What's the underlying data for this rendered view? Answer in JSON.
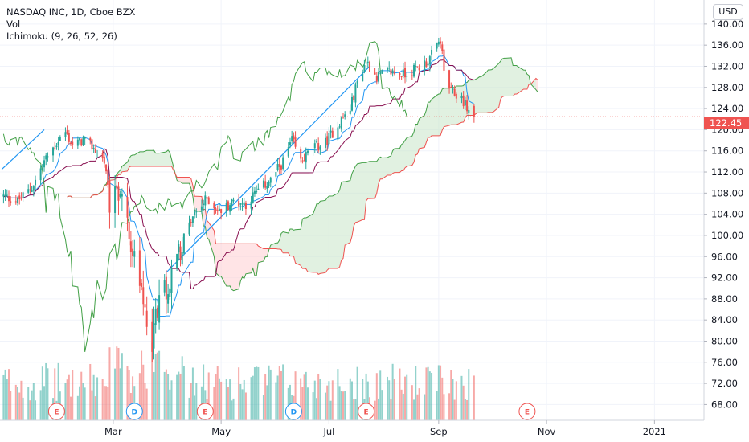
{
  "header": {
    "symbol_line": "NASDAQ INC, 1D, Cboe BZX",
    "vol_label": "Vol",
    "ichimoku_label": "Ichimoku (9, 26, 52, 26)"
  },
  "currency_button": "USD",
  "last_price_tag": "122.45",
  "colors": {
    "up": "#26a69a",
    "down": "#ef5350",
    "conversion": "#2196f3",
    "base": "#880e4f",
    "lagging": "#43a047",
    "lead_a": "#43a047",
    "lead_b": "#ef5350",
    "cloud_bull": "#c8e6c9",
    "cloud_bear": "#ffcdd2",
    "trendline": "#2196f3"
  },
  "chart_data": {
    "type": "candlestick",
    "y_ticks": [
      "140.00",
      "136.00",
      "132.00",
      "128.00",
      "124.00",
      "120.00",
      "116.00",
      "112.00",
      "108.00",
      "104.00",
      "100.00",
      "96.00",
      "92.00",
      "88.00",
      "84.00",
      "80.00",
      "76.00",
      "72.00",
      "68.00"
    ],
    "x_ticks": [
      {
        "label": "Mar",
        "date": "2020-03-01"
      },
      {
        "label": "May",
        "date": "2020-05-01"
      },
      {
        "label": "Jul",
        "date": "2020-07-01"
      },
      {
        "label": "Sep",
        "date": "2020-09-01"
      },
      {
        "label": "Nov",
        "date": "2020-11-01"
      },
      {
        "label": "2021",
        "date": "2021-01-01"
      }
    ],
    "ylim": [
      67,
      141.5
    ],
    "xlim": [
      "2019-12-28",
      "2021-01-29"
    ],
    "last_price": 122.45,
    "trend_lines": [
      {
        "x": [
          "2019-12-29",
          "2020-01-22"
        ],
        "y": [
          112.5,
          120.0
        ]
      },
      {
        "x": [
          "2020-03-31",
          "2020-07-24"
        ],
        "y": [
          93.0,
          132.0
        ]
      }
    ],
    "events": [
      {
        "letter": "E",
        "date": "2020-01-29",
        "kind": "earnings"
      },
      {
        "letter": "D",
        "date": "2020-03-13",
        "kind": "dividend"
      },
      {
        "letter": "E",
        "date": "2020-04-22",
        "kind": "earnings"
      },
      {
        "letter": "D",
        "date": "2020-06-11",
        "kind": "dividend"
      },
      {
        "letter": "E",
        "date": "2020-07-22",
        "kind": "earnings"
      },
      {
        "letter": "E",
        "date": "2020-10-21",
        "kind": "earnings"
      }
    ],
    "candles_keyframes": [
      [
        "2019-12-29",
        107.5
      ],
      [
        "2020-01-07",
        106.5
      ],
      [
        "2020-01-15",
        109
      ],
      [
        "2020-01-22",
        114
      ],
      [
        "2020-01-30",
        118
      ],
      [
        "2020-02-03",
        119.5
      ],
      [
        "2020-02-07",
        117
      ],
      [
        "2020-02-13",
        118
      ],
      [
        "2020-02-19",
        116.5
      ],
      [
        "2020-02-25",
        114
      ],
      [
        "2020-02-28",
        106
      ],
      [
        "2020-03-04",
        109
      ],
      [
        "2020-03-10",
        101
      ],
      [
        "2020-03-16",
        90
      ],
      [
        "2020-03-20",
        85
      ],
      [
        "2020-03-23",
        80
      ],
      [
        "2020-03-27",
        89
      ],
      [
        "2020-04-02",
        91
      ],
      [
        "2020-04-09",
        99
      ],
      [
        "2020-04-16",
        104
      ],
      [
        "2020-04-23",
        107
      ],
      [
        "2020-04-30",
        104.5
      ],
      [
        "2020-05-08",
        106.5
      ],
      [
        "2020-05-15",
        106
      ],
      [
        "2020-05-22",
        108.5
      ],
      [
        "2020-05-29",
        110.5
      ],
      [
        "2020-06-05",
        114
      ],
      [
        "2020-06-10",
        118
      ],
      [
        "2020-06-15",
        114
      ],
      [
        "2020-06-22",
        116.5
      ],
      [
        "2020-06-29",
        117.5
      ],
      [
        "2020-07-06",
        121
      ],
      [
        "2020-07-13",
        124
      ],
      [
        "2020-07-17",
        129
      ],
      [
        "2020-07-22",
        133
      ],
      [
        "2020-07-28",
        130
      ],
      [
        "2020-08-04",
        131
      ],
      [
        "2020-08-12",
        130.5
      ],
      [
        "2020-08-19",
        131.5
      ],
      [
        "2020-08-26",
        133
      ],
      [
        "2020-09-02",
        137
      ],
      [
        "2020-09-04",
        131
      ],
      [
        "2020-09-08",
        127
      ],
      [
        "2020-09-14",
        126
      ],
      [
        "2020-09-18",
        123.5
      ],
      [
        "2020-09-21",
        122.45
      ]
    ],
    "volume_scale": "relative"
  }
}
